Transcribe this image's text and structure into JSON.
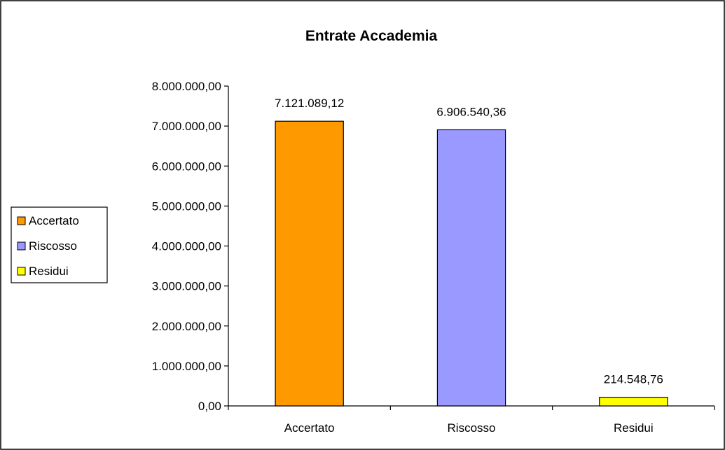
{
  "chart_data": {
    "type": "bar",
    "title": "Entrate Accademia",
    "categories": [
      "Accertato",
      "Riscosso",
      "Residui"
    ],
    "values": [
      7121089.12,
      6906540.36,
      214548.76
    ],
    "value_labels": [
      "7.121.089,12",
      "6.906.540,36",
      "214.548,76"
    ],
    "colors": [
      "#ff9900",
      "#9999ff",
      "#ffff00"
    ],
    "ylim": [
      0,
      8000000
    ],
    "y_ticks": [
      0,
      1000000,
      2000000,
      3000000,
      4000000,
      5000000,
      6000000,
      7000000,
      8000000
    ],
    "y_tick_labels": [
      "0,00",
      "1.000.000,00",
      "2.000.000,00",
      "3.000.000,00",
      "4.000.000,00",
      "5.000.000,00",
      "6.000.000,00",
      "7.000.000,00",
      "8.000.000,00"
    ],
    "grid": false,
    "legend": {
      "position": "left",
      "entries": [
        "Accertato",
        "Riscosso",
        "Residui"
      ]
    }
  }
}
